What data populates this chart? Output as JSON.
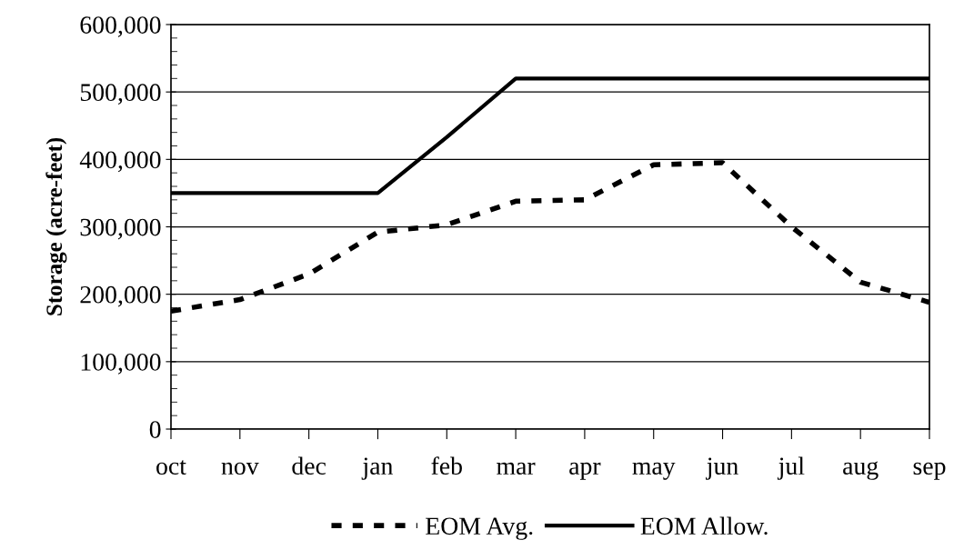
{
  "chart_data": {
    "type": "line",
    "ylabel": "Storage (acre-feet)",
    "categories": [
      "oct",
      "nov",
      "dec",
      "jan",
      "feb",
      "mar",
      "apr",
      "may",
      "jun",
      "jul",
      "aug",
      "sep"
    ],
    "series": [
      {
        "name": "EOM Avg.",
        "color": "#000000",
        "line_style": "dotted",
        "values": [
          175000,
          192000,
          230000,
          292000,
          303000,
          338000,
          340000,
          392000,
          395000,
          300000,
          218000,
          188000
        ]
      },
      {
        "name": "EOM Allow.",
        "color": "#000000",
        "line_style": "solid",
        "values": [
          350000,
          350000,
          350000,
          350000,
          433000,
          520000,
          520000,
          520000,
          520000,
          520000,
          520000,
          520000
        ]
      }
    ],
    "ylim": [
      0,
      600000
    ],
    "yticks": [
      {
        "value": 0,
        "label": "0"
      },
      {
        "value": 100000,
        "label": "100,000"
      },
      {
        "value": 200000,
        "label": "200,000"
      },
      {
        "value": 300000,
        "label": "300,000"
      },
      {
        "value": 400000,
        "label": "400,000"
      },
      {
        "value": 500000,
        "label": "500,000"
      },
      {
        "value": 600000,
        "label": "600,000"
      }
    ],
    "grid": "y",
    "legend": "bottom",
    "marker": "none"
  }
}
